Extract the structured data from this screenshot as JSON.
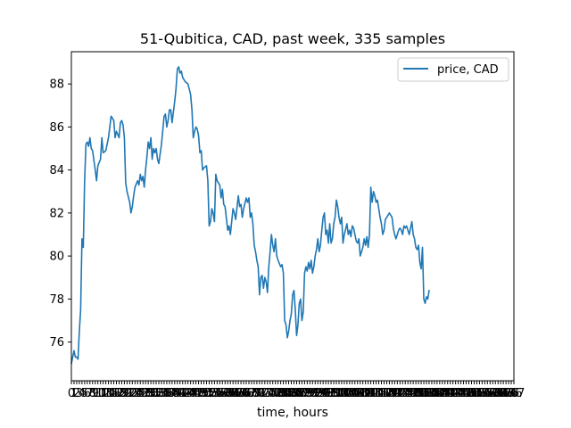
{
  "chart_data": {
    "type": "line",
    "title": "51-Qubitica, CAD, past week, 335 samples",
    "xlabel": "time, hours",
    "ylabel": "",
    "xlim": [
      0,
      167
    ],
    "ylim": [
      74.2,
      89.5
    ],
    "yticks": [
      76,
      78,
      80,
      82,
      84,
      86,
      88
    ],
    "grid": false,
    "legend": {
      "position": "top-right"
    },
    "series": [
      {
        "name": "price, CAD",
        "color": "#1f77b4",
        "points": [
          [
            0,
            75.0
          ],
          [
            1,
            75.6
          ],
          [
            1.5,
            75.3
          ],
          [
            2,
            75.3
          ],
          [
            2.5,
            75.2
          ],
          [
            3,
            76.5
          ],
          [
            3.5,
            77.5
          ],
          [
            4,
            80.8
          ],
          [
            4.5,
            80.4
          ],
          [
            5,
            83.5
          ],
          [
            5.5,
            85.2
          ],
          [
            6,
            85.3
          ],
          [
            6.5,
            85.1
          ],
          [
            7,
            85.5
          ],
          [
            7.5,
            85.0
          ],
          [
            8,
            84.9
          ],
          [
            9,
            84.0
          ],
          [
            9.5,
            83.5
          ],
          [
            10,
            84.2
          ],
          [
            11,
            84.5
          ],
          [
            11.5,
            85.5
          ],
          [
            12,
            84.8
          ],
          [
            13,
            84.9
          ],
          [
            14,
            85.5
          ],
          [
            15,
            86.5
          ],
          [
            16,
            86.3
          ],
          [
            16.5,
            85.5
          ],
          [
            17,
            85.8
          ],
          [
            18,
            85.5
          ],
          [
            18.5,
            86.2
          ],
          [
            19,
            86.3
          ],
          [
            19.5,
            86.1
          ],
          [
            20,
            85.5
          ],
          [
            20.5,
            83.4
          ],
          [
            21,
            83.0
          ],
          [
            22,
            82.5
          ],
          [
            22.5,
            82.0
          ],
          [
            23,
            82.3
          ],
          [
            23.5,
            82.8
          ],
          [
            24,
            83.2
          ],
          [
            25,
            83.5
          ],
          [
            25.5,
            83.3
          ],
          [
            26,
            83.8
          ],
          [
            26.5,
            83.5
          ],
          [
            27,
            83.7
          ],
          [
            27.5,
            83.2
          ],
          [
            28,
            84.0
          ],
          [
            28.5,
            84.6
          ],
          [
            29,
            85.3
          ],
          [
            29.5,
            85.0
          ],
          [
            30,
            85.5
          ],
          [
            30.5,
            84.5
          ],
          [
            31,
            85.0
          ],
          [
            31.5,
            84.8
          ],
          [
            32,
            85.0
          ],
          [
            32.5,
            84.5
          ],
          [
            33,
            84.3
          ],
          [
            34,
            85.2
          ],
          [
            35,
            86.5
          ],
          [
            35.5,
            86.6
          ],
          [
            36,
            86.0
          ],
          [
            36.5,
            86.3
          ],
          [
            37,
            86.8
          ],
          [
            37.5,
            86.8
          ],
          [
            38,
            86.2
          ],
          [
            39,
            87.2
          ],
          [
            39.5,
            87.8
          ],
          [
            40,
            88.7
          ],
          [
            40.5,
            88.8
          ],
          [
            41,
            88.5
          ],
          [
            41.5,
            88.6
          ],
          [
            42,
            88.3
          ],
          [
            43,
            88.1
          ],
          [
            44,
            88.0
          ],
          [
            45,
            87.5
          ],
          [
            45.5,
            86.8
          ],
          [
            46,
            85.5
          ],
          [
            46.5,
            85.8
          ],
          [
            47,
            86.0
          ],
          [
            47.5,
            85.9
          ],
          [
            48,
            85.6
          ],
          [
            48.5,
            84.8
          ],
          [
            49,
            84.9
          ],
          [
            49.5,
            84.0
          ],
          [
            50,
            84.1
          ],
          [
            51,
            84.2
          ],
          [
            51.5,
            83.5
          ],
          [
            52,
            81.4
          ],
          [
            52.5,
            81.6
          ],
          [
            53,
            82.2
          ],
          [
            53.5,
            82.0
          ],
          [
            54,
            81.6
          ],
          [
            54.5,
            83.8
          ],
          [
            55,
            83.5
          ],
          [
            56,
            83.3
          ],
          [
            56.5,
            82.7
          ],
          [
            57,
            83.1
          ],
          [
            57.5,
            82.4
          ],
          [
            58,
            82.3
          ],
          [
            59,
            81.2
          ],
          [
            59.5,
            81.4
          ],
          [
            60,
            81.0
          ],
          [
            61,
            82.2
          ],
          [
            61.5,
            82.0
          ],
          [
            62,
            81.7
          ],
          [
            63,
            82.8
          ],
          [
            63.5,
            82.3
          ],
          [
            64,
            82.4
          ],
          [
            64.5,
            81.8
          ],
          [
            65,
            82.2
          ],
          [
            66,
            82.7
          ],
          [
            66.5,
            82.5
          ],
          [
            67,
            82.7
          ],
          [
            67.5,
            81.8
          ],
          [
            68,
            82.0
          ],
          [
            68.5,
            81.5
          ],
          [
            69,
            80.5
          ],
          [
            69.5,
            80.2
          ],
          [
            70,
            79.8
          ],
          [
            70.5,
            79.5
          ],
          [
            71,
            78.2
          ],
          [
            71.5,
            79.0
          ],
          [
            72,
            79.1
          ],
          [
            72.5,
            78.5
          ],
          [
            73,
            79.0
          ],
          [
            73.5,
            78.8
          ],
          [
            74,
            78.3
          ],
          [
            74.5,
            79.5
          ],
          [
            75,
            80.2
          ],
          [
            75.5,
            81.0
          ],
          [
            76,
            80.5
          ],
          [
            76.5,
            80.2
          ],
          [
            77,
            80.8
          ],
          [
            77.5,
            80.0
          ],
          [
            78,
            79.8
          ],
          [
            79,
            79.5
          ],
          [
            79.5,
            79.6
          ],
          [
            80,
            79.2
          ],
          [
            80.5,
            77.0
          ],
          [
            81,
            76.8
          ],
          [
            81.5,
            76.2
          ],
          [
            82,
            76.5
          ],
          [
            82.5,
            77.0
          ],
          [
            83,
            77.3
          ],
          [
            83.5,
            78.2
          ],
          [
            84,
            78.4
          ],
          [
            84.5,
            77.5
          ],
          [
            85,
            76.3
          ],
          [
            85.5,
            76.8
          ],
          [
            86,
            77.8
          ],
          [
            86.5,
            78.0
          ],
          [
            87,
            77.0
          ],
          [
            87.5,
            77.4
          ],
          [
            88,
            79.2
          ],
          [
            88.5,
            79.5
          ],
          [
            89,
            79.3
          ],
          [
            89.5,
            79.7
          ],
          [
            90,
            79.4
          ],
          [
            90.5,
            79.8
          ],
          [
            91,
            79.2
          ],
          [
            91.5,
            79.5
          ],
          [
            92,
            80.0
          ],
          [
            92.5,
            80.3
          ],
          [
            93,
            80.8
          ],
          [
            93.5,
            80.2
          ],
          [
            94,
            80.5
          ],
          [
            94.5,
            81.2
          ],
          [
            95,
            81.8
          ],
          [
            95.5,
            82.0
          ],
          [
            96,
            81.0
          ],
          [
            96.5,
            81.2
          ],
          [
            97,
            80.6
          ],
          [
            97.5,
            81.5
          ],
          [
            98,
            80.6
          ],
          [
            98.5,
            80.8
          ],
          [
            99,
            81.5
          ],
          [
            99.5,
            81.8
          ],
          [
            100,
            82.6
          ],
          [
            100.5,
            82.3
          ],
          [
            101,
            81.8
          ],
          [
            101.5,
            81.5
          ],
          [
            102,
            81.8
          ],
          [
            102.5,
            80.6
          ],
          [
            103,
            81.0
          ],
          [
            104,
            81.5
          ],
          [
            104.5,
            81.0
          ],
          [
            105,
            81.2
          ],
          [
            105.5,
            80.9
          ],
          [
            106,
            81.4
          ],
          [
            106.5,
            81.3
          ],
          [
            107,
            81.0
          ],
          [
            107.5,
            80.7
          ],
          [
            108,
            80.6
          ],
          [
            108.5,
            80.8
          ],
          [
            109,
            80.0
          ],
          [
            109.5,
            80.2
          ],
          [
            110,
            80.4
          ],
          [
            110.5,
            80.8
          ],
          [
            111,
            80.5
          ],
          [
            111.5,
            80.9
          ],
          [
            112,
            80.4
          ],
          [
            112.5,
            81.0
          ],
          [
            113,
            83.2
          ],
          [
            113.5,
            82.5
          ],
          [
            114,
            83.0
          ],
          [
            114.5,
            82.8
          ],
          [
            115,
            82.5
          ],
          [
            115.5,
            82.6
          ],
          [
            116,
            82.2
          ],
          [
            116.5,
            81.8
          ],
          [
            117,
            81.5
          ],
          [
            117.5,
            81.0
          ],
          [
            118,
            81.2
          ],
          [
            118.5,
            81.7
          ],
          [
            119,
            81.8
          ],
          [
            119.5,
            81.9
          ],
          [
            120,
            82.0
          ],
          [
            121,
            81.8
          ],
          [
            121.5,
            81.3
          ],
          [
            122,
            81.0
          ],
          [
            122.5,
            80.8
          ],
          [
            123,
            81.0
          ],
          [
            123.5,
            81.2
          ],
          [
            124,
            81.3
          ],
          [
            124.5,
            81.2
          ],
          [
            125,
            81.0
          ],
          [
            125.5,
            81.4
          ],
          [
            126,
            81.3
          ],
          [
            126.5,
            81.4
          ],
          [
            127,
            81.2
          ],
          [
            127.5,
            81.0
          ],
          [
            128,
            81.3
          ],
          [
            128.5,
            81.6
          ],
          [
            129,
            81.0
          ],
          [
            129.5,
            80.8
          ],
          [
            130,
            80.4
          ],
          [
            130.5,
            80.3
          ],
          [
            131,
            80.5
          ],
          [
            131.5,
            79.7
          ],
          [
            132,
            79.4
          ],
          [
            132.5,
            80.4
          ],
          [
            133,
            78.0
          ],
          [
            133.5,
            77.8
          ],
          [
            134,
            78.1
          ],
          [
            134.5,
            78.0
          ],
          [
            135,
            78.4
          ]
        ]
      }
    ]
  }
}
